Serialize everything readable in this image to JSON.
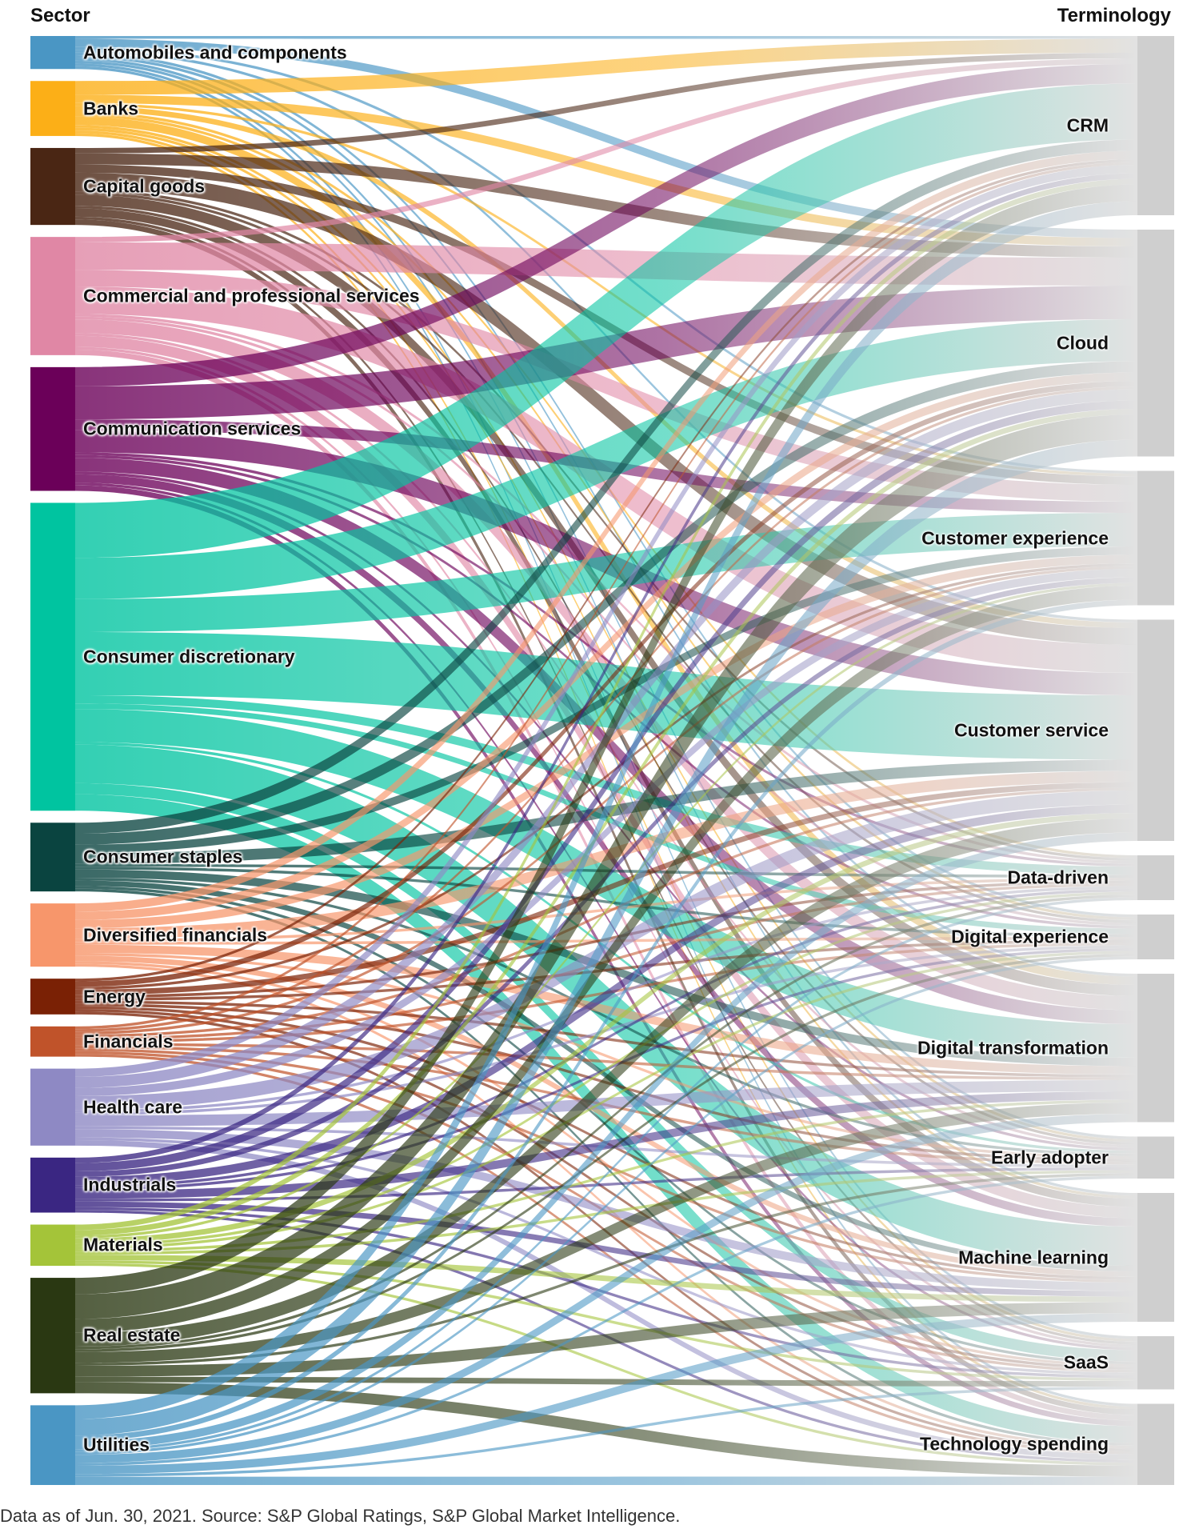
{
  "header": {
    "left": "Sector",
    "right": "Terminology"
  },
  "footnote": "Data as of Jun. 30, 2021. Source: S&P Global Ratings, S&P Global Market Intelligence.",
  "chart_data": {
    "type": "sankey",
    "sources": [
      {
        "name": "Automobiles and components",
        "color": "#4a96c4"
      },
      {
        "name": "Banks",
        "color": "#fcaf17"
      },
      {
        "name": "Capital goods",
        "color": "#4a2614"
      },
      {
        "name": "Commercial and professional services",
        "color": "#e087a5"
      },
      {
        "name": "Communication services",
        "color": "#6b0059"
      },
      {
        "name": "Consumer discretionary",
        "color": "#00c4a0"
      },
      {
        "name": "Consumer staples",
        "color": "#0a4440"
      },
      {
        "name": "Diversified financials",
        "color": "#f7966b"
      },
      {
        "name": "Energy",
        "color": "#7a2105"
      },
      {
        "name": "Financials",
        "color": "#c0532a"
      },
      {
        "name": "Health care",
        "color": "#8e89c4"
      },
      {
        "name": "Industrials",
        "color": "#3a2682"
      },
      {
        "name": "Materials",
        "color": "#a4c439"
      },
      {
        "name": "Real estate",
        "color": "#2a3812"
      },
      {
        "name": "Utilities",
        "color": "#4a96c4"
      }
    ],
    "targets": [
      {
        "name": "CRM"
      },
      {
        "name": "Cloud"
      },
      {
        "name": "Customer experience"
      },
      {
        "name": "Customer service"
      },
      {
        "name": "Data-driven"
      },
      {
        "name": "Digital experience"
      },
      {
        "name": "Digital transformation"
      },
      {
        "name": "Early adopter"
      },
      {
        "name": "Machine learning"
      },
      {
        "name": "SaaS"
      },
      {
        "name": "Technology spending"
      }
    ],
    "target_color": "#cfcfcf",
    "flows": [
      [
        1,
        3,
        1,
        1,
        0,
        1,
        1,
        1,
        1,
        1,
        1
      ],
      [
        5,
        3,
        1,
        2,
        1,
        1,
        3,
        1,
        1,
        1,
        1
      ],
      [
        2,
        4,
        3,
        6,
        1,
        1,
        4,
        1,
        3,
        1,
        2
      ],
      [
        2,
        10,
        6,
        10,
        1,
        1,
        5,
        1,
        4,
        1,
        2
      ],
      [
        7,
        12,
        4,
        8,
        1,
        1,
        5,
        1,
        3,
        1,
        2
      ],
      [
        20,
        15,
        12,
        23,
        3,
        2,
        12,
        1,
        14,
        4,
        6
      ],
      [
        4,
        4,
        3,
        4,
        1,
        1,
        3,
        1,
        2,
        1,
        1
      ],
      [
        3,
        3,
        3,
        4,
        1,
        1,
        3,
        1,
        2,
        1,
        1
      ],
      [
        1,
        2,
        1,
        2,
        1,
        1,
        1,
        1,
        1,
        1,
        1
      ],
      [
        1,
        1,
        1,
        1,
        1,
        1,
        1,
        1,
        1,
        1,
        1
      ],
      [
        3,
        4,
        3,
        5,
        1,
        1,
        4,
        1,
        3,
        1,
        2
      ],
      [
        2,
        3,
        2,
        3,
        1,
        1,
        3,
        1,
        2,
        1,
        1
      ],
      [
        2,
        2,
        1,
        2,
        1,
        1,
        1,
        1,
        2,
        1,
        1
      ],
      [
        6,
        9,
        5,
        5,
        1,
        1,
        4,
        1,
        4,
        2,
        4
      ],
      [
        5,
        6,
        2,
        3,
        1,
        1,
        3,
        1,
        3,
        1,
        3
      ]
    ]
  }
}
